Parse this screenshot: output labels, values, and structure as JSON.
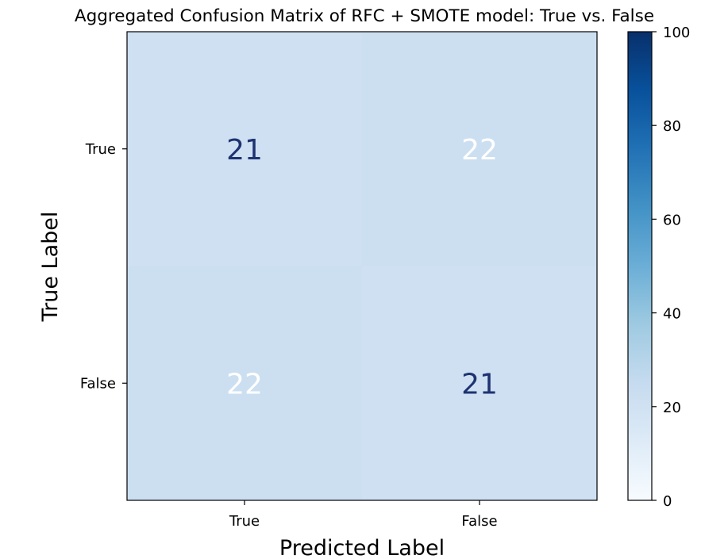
{
  "chart_data": {
    "type": "heatmap",
    "title": "Aggregated Confusion Matrix of RFC + SMOTE model: True vs. False",
    "xlabel": "Predicted Label",
    "ylabel": "True Label",
    "x_categories": [
      "True",
      "False"
    ],
    "y_categories": [
      "True",
      "False"
    ],
    "values": [
      [
        21,
        22
      ],
      [
        22,
        21
      ]
    ],
    "cell_label_colors": [
      [
        "#1e3370",
        "#ffffff"
      ],
      [
        "#ffffff",
        "#1e3370"
      ]
    ],
    "colormap": "Blues",
    "colorbar": {
      "range": [
        0,
        100
      ],
      "ticks": [
        0,
        20,
        40,
        60,
        80,
        100
      ],
      "colors": [
        "#f7fbff",
        "#deebf7",
        "#c6dbef",
        "#9ecae1",
        "#6baed6",
        "#4292c6",
        "#2171b5",
        "#08519c",
        "#08306b"
      ]
    }
  }
}
